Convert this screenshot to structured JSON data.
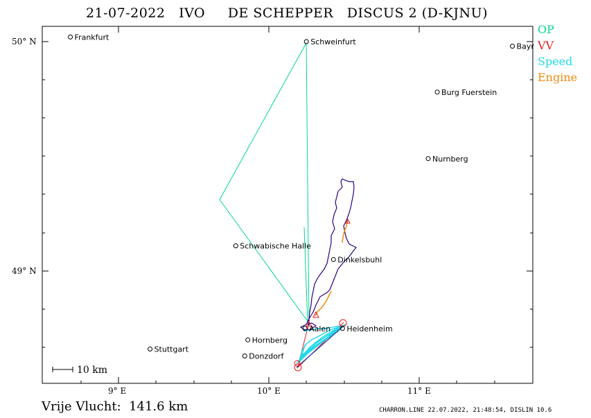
{
  "title": "21-07-2022   IVO     DE SCHEPPER   DISCUS 2 (D-KJNU)",
  "legend": [
    {
      "label": "OP",
      "color": "#00d890"
    },
    {
      "label": "VV",
      "color": "#e02020"
    },
    {
      "label": "Speed",
      "color": "#20d8e8"
    },
    {
      "label": "Engine",
      "color": "#f08a10"
    }
  ],
  "axes": {
    "lat_labels": [
      "50° N",
      "49° N"
    ],
    "lon_labels": [
      "9° E",
      "10° E",
      "11° E"
    ]
  },
  "scale_bar": {
    "label": "10 km"
  },
  "cities": [
    {
      "name": "Frankfurt",
      "lon": 8.68,
      "lat": 50.02
    },
    {
      "name": "Schweinfurt",
      "lon": 10.25,
      "lat": 50.0
    },
    {
      "name": "Bayreuth",
      "display": "Bayr",
      "lon": 11.62,
      "lat": 49.98
    },
    {
      "name": "Burg Fuerstein",
      "lon": 11.12,
      "lat": 49.78
    },
    {
      "name": "Nurnberg",
      "lon": 11.06,
      "lat": 49.49
    },
    {
      "name": "Schwabische Halle",
      "lon": 9.78,
      "lat": 49.11
    },
    {
      "name": "Dinkelsbuhl",
      "lon": 10.43,
      "lat": 49.05
    },
    {
      "name": "Aalen",
      "lon": 10.24,
      "lat": 48.75
    },
    {
      "name": "Heidenheim",
      "lon": 10.49,
      "lat": 48.75
    },
    {
      "name": "Hornberg",
      "lon": 9.86,
      "lat": 48.7
    },
    {
      "name": "Stuttgart",
      "lon": 9.21,
      "lat": 48.66
    },
    {
      "name": "Donzdorf",
      "lon": 9.84,
      "lat": 48.63
    }
  ],
  "footer": {
    "free_flight": "Vrije Vlucht:  141.6 km",
    "generator": "CHARRON.LINE 22.07.2022, 21:48:54, DISLIN 10.6"
  }
}
